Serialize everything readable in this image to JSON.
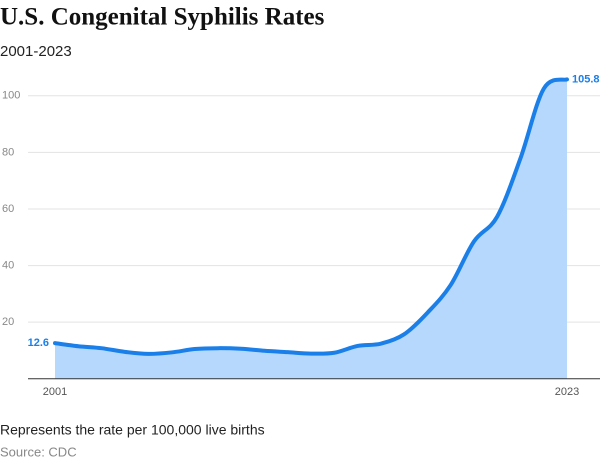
{
  "chart_data": {
    "type": "area",
    "title": "U.S. Congenital Syphilis Rates",
    "subtitle": "2001-2023",
    "note": "Represents the rate per 100,000 live births",
    "source": "Source: CDC",
    "x": [
      2001,
      2002,
      2003,
      2004,
      2005,
      2006,
      2007,
      2008,
      2009,
      2010,
      2011,
      2012,
      2013,
      2014,
      2015,
      2016,
      2017,
      2018,
      2019,
      2020,
      2021,
      2022,
      2023
    ],
    "values": [
      12.6,
      11.5,
      10.8,
      9.5,
      8.8,
      9.3,
      10.5,
      10.8,
      10.6,
      9.9,
      9.4,
      8.9,
      9.2,
      11.6,
      12.4,
      15.7,
      23.3,
      33.1,
      48.5,
      57.3,
      77.9,
      102.5,
      105.8
    ],
    "color": "#1a7fe8",
    "fill": "#b5d8fc",
    "xlim": [
      2001,
      2023
    ],
    "xticks": [
      2001,
      2023
    ],
    "ylim": [
      0,
      110
    ],
    "yticks": [
      20,
      40,
      60,
      80,
      100
    ],
    "grid": true
  }
}
